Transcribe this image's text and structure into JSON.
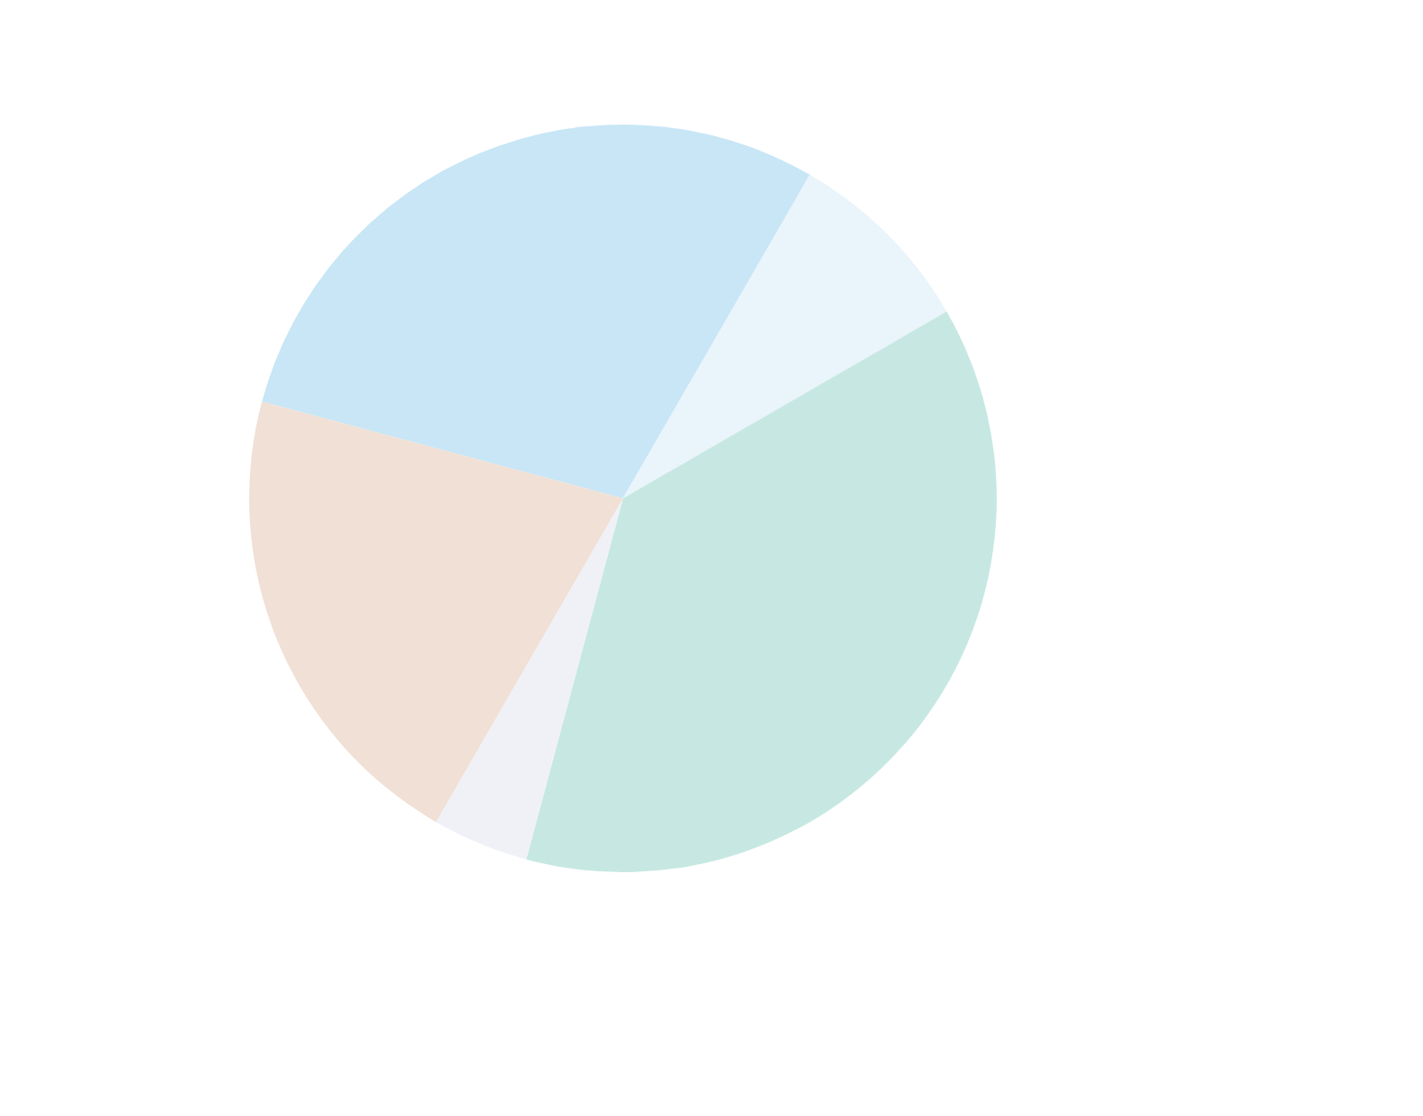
{
  "chart_data": {
    "type": "pie",
    "categories": [
      null,
      null,
      null,
      null,
      null
    ],
    "values": [
      29.17,
      8.33,
      37.5,
      4.17,
      20.83
    ],
    "colors": [
      "#c8e6f6",
      "#eaf4fb",
      "#c7e8e2",
      "#f0f1f7",
      "#f0e0d5"
    ]
  }
}
